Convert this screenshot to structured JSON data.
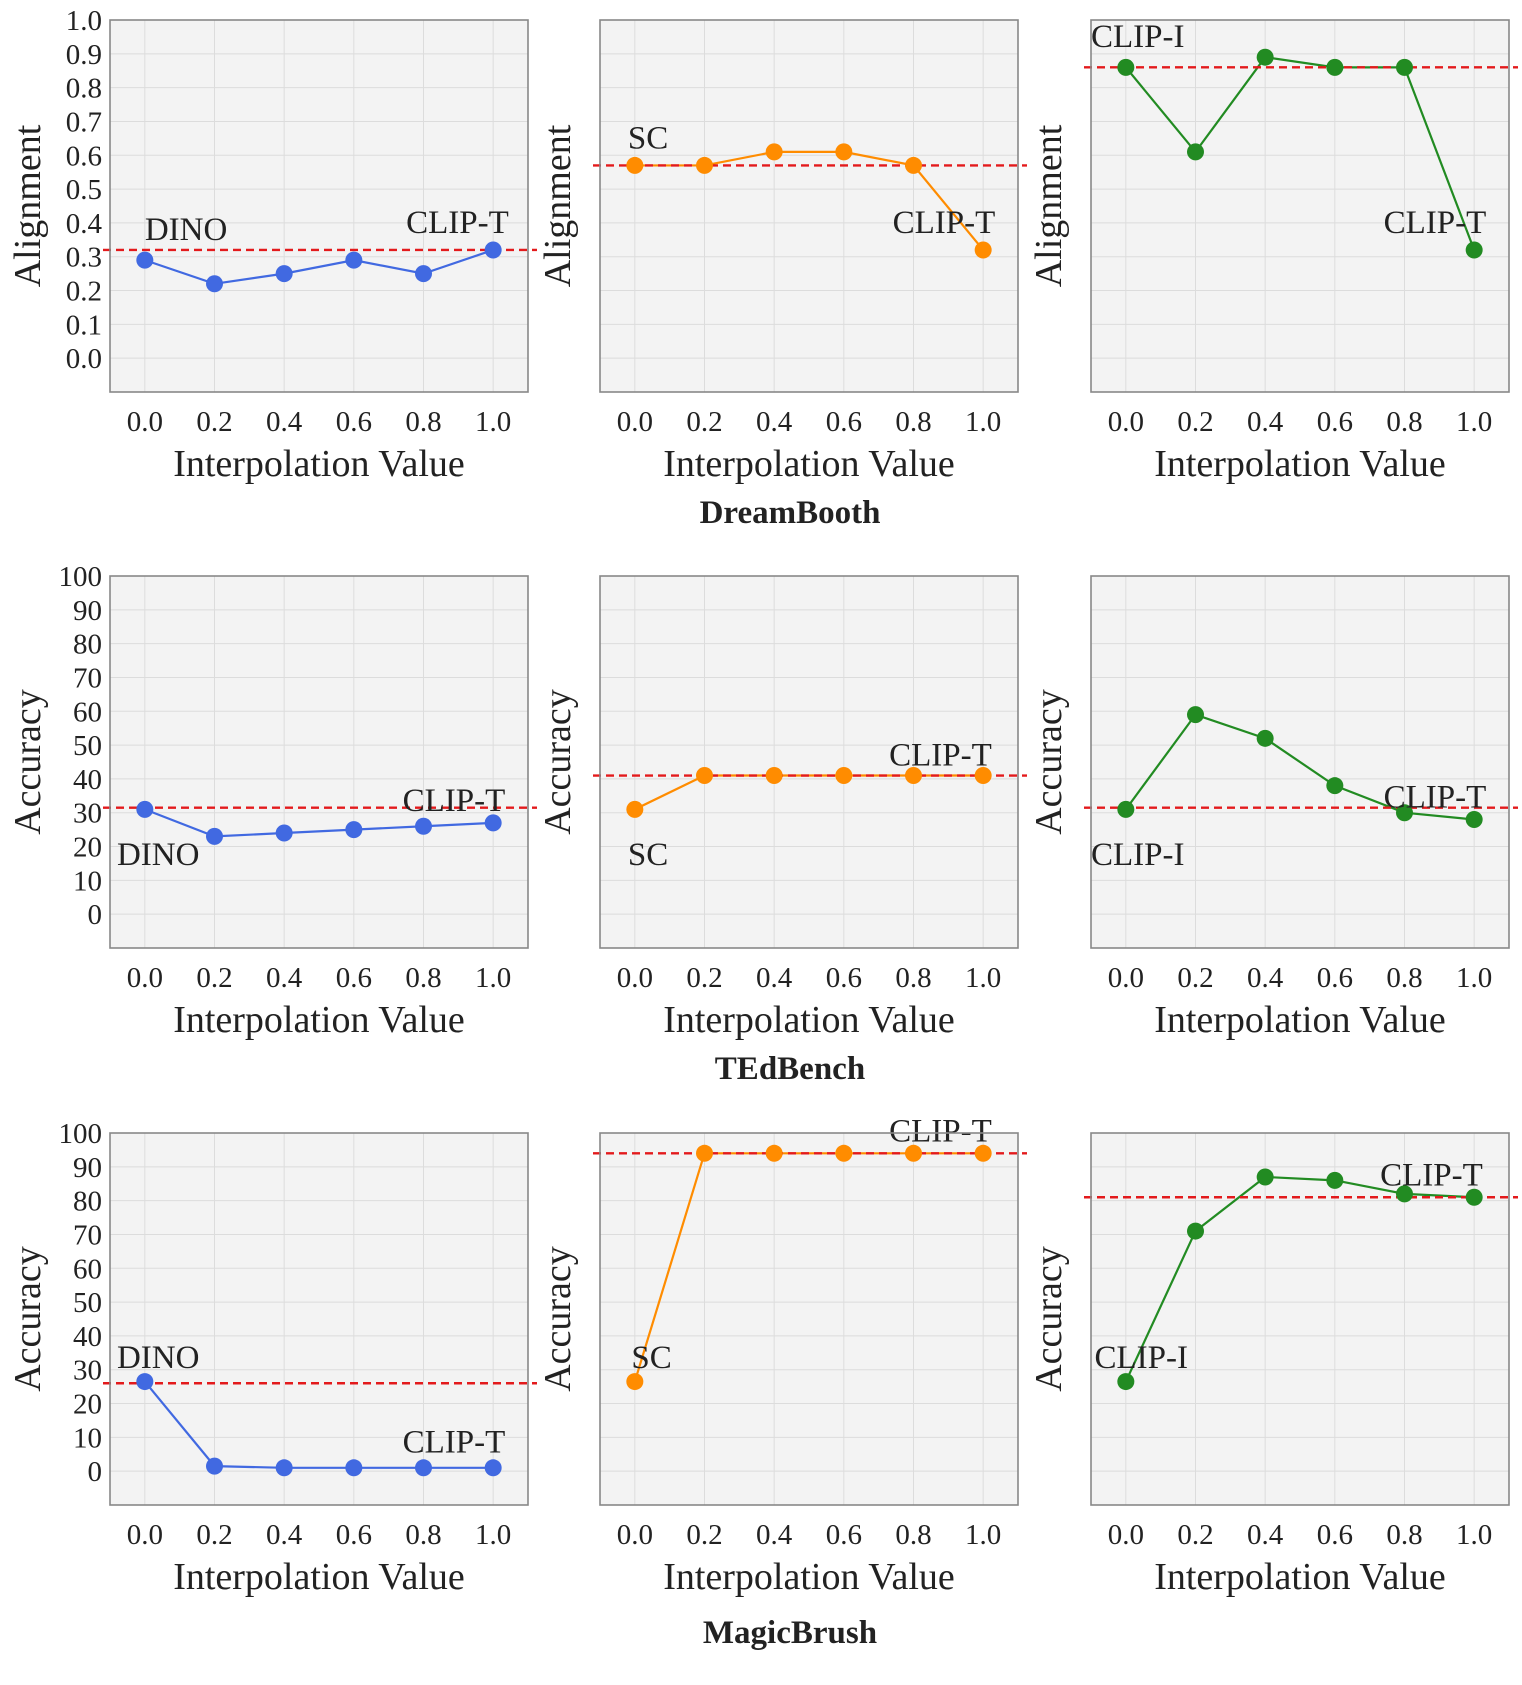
{
  "figure": {
    "group_titles": [
      "DreamBooth",
      "TEdBench",
      "MagicBrush"
    ]
  },
  "chart_data": [
    {
      "type": "line",
      "group": "DreamBooth",
      "panel": "DreamBooth-DINO",
      "x": [
        0.0,
        0.2,
        0.4,
        0.6,
        0.8,
        1.0
      ],
      "values": [
        0.29,
        0.22,
        0.25,
        0.29,
        0.25,
        0.32
      ],
      "xlabel": "Interpolation Value",
      "ylabel": "Alignment",
      "xticks": [
        "0.0",
        "0.2",
        "0.4",
        "0.6",
        "0.8",
        "1.0"
      ],
      "yticks": [
        "0.0",
        "0.1",
        "0.2",
        "0.3",
        "0.4",
        "0.5",
        "0.6",
        "0.7",
        "0.8",
        "0.9",
        "1.0"
      ],
      "show_yticks": true,
      "ylim": [
        -0.1,
        1.0
      ],
      "xlim": [
        -0.1,
        1.1
      ],
      "reference_line": 0.32,
      "annotations": [
        {
          "text": "DINO",
          "x": 0.0,
          "y": 0.35
        },
        {
          "text": "CLIP-T",
          "x": 0.75,
          "y": 0.37
        }
      ],
      "color": "#4169e1",
      "grid": true
    },
    {
      "type": "line",
      "group": "DreamBooth",
      "panel": "DreamBooth-SC",
      "x": [
        0.0,
        0.2,
        0.4,
        0.6,
        0.8,
        1.0
      ],
      "values": [
        0.57,
        0.57,
        0.61,
        0.61,
        0.57,
        0.32
      ],
      "xlabel": "Interpolation Value",
      "ylabel": "Alignment",
      "xticks": [
        "0.0",
        "0.2",
        "0.4",
        "0.6",
        "0.8",
        "1.0"
      ],
      "yticks": [],
      "show_yticks": false,
      "ylim": [
        -0.1,
        1.0
      ],
      "xlim": [
        -0.1,
        1.1
      ],
      "reference_line": 0.57,
      "annotations": [
        {
          "text": "SC",
          "x": -0.02,
          "y": 0.62
        },
        {
          "text": "CLIP-T",
          "x": 0.74,
          "y": 0.37
        }
      ],
      "color": "#ff8c00",
      "grid": true
    },
    {
      "type": "line",
      "group": "DreamBooth",
      "panel": "DreamBooth-CLIP-I",
      "x": [
        0.0,
        0.2,
        0.4,
        0.6,
        0.8,
        1.0
      ],
      "values": [
        0.86,
        0.61,
        0.89,
        0.86,
        0.86,
        0.32
      ],
      "xlabel": "Interpolation Value",
      "ylabel": "Alignment",
      "xticks": [
        "0.0",
        "0.2",
        "0.4",
        "0.6",
        "0.8",
        "1.0"
      ],
      "yticks": [],
      "show_yticks": false,
      "ylim": [
        -0.1,
        1.0
      ],
      "xlim": [
        -0.1,
        1.1
      ],
      "reference_line": 0.86,
      "annotations": [
        {
          "text": "CLIP-I",
          "x": -0.1,
          "y": 0.92
        },
        {
          "text": "CLIP-T",
          "x": 0.74,
          "y": 0.37
        }
      ],
      "color": "#228b22",
      "grid": true
    },
    {
      "type": "line",
      "group": "TEdBench",
      "panel": "TEdBench-DINO",
      "x": [
        0.0,
        0.2,
        0.4,
        0.6,
        0.8,
        1.0
      ],
      "values": [
        31,
        23,
        24,
        25,
        26,
        27
      ],
      "xlabel": "Interpolation Value",
      "ylabel": "Accuracy",
      "xticks": [
        "0.0",
        "0.2",
        "0.4",
        "0.6",
        "0.8",
        "1.0"
      ],
      "yticks": [
        "0",
        "10",
        "20",
        "30",
        "40",
        "50",
        "60",
        "70",
        "80",
        "90",
        "100"
      ],
      "show_yticks": true,
      "ylim": [
        -10,
        100
      ],
      "xlim": [
        -0.1,
        1.1
      ],
      "reference_line": 31.5,
      "annotations": [
        {
          "text": "DINO",
          "x": -0.08,
          "y": 14.5
        },
        {
          "text": "CLIP-T",
          "x": 0.74,
          "y": 30.5
        }
      ],
      "color": "#4169e1",
      "grid": true
    },
    {
      "type": "line",
      "group": "TEdBench",
      "panel": "TEdBench-SC",
      "x": [
        0.0,
        0.2,
        0.4,
        0.6,
        0.8,
        1.0
      ],
      "values": [
        31,
        41,
        41,
        41,
        41,
        41
      ],
      "xlabel": "Interpolation Value",
      "ylabel": "Accuracy",
      "xticks": [
        "0.0",
        "0.2",
        "0.4",
        "0.6",
        "0.8",
        "1.0"
      ],
      "yticks": [],
      "show_yticks": false,
      "ylim": [
        -10,
        100
      ],
      "xlim": [
        -0.1,
        1.1
      ],
      "reference_line": 41,
      "annotations": [
        {
          "text": "SC",
          "x": -0.02,
          "y": 14.5
        },
        {
          "text": "CLIP-T",
          "x": 0.73,
          "y": 44
        }
      ],
      "color": "#ff8c00",
      "grid": true
    },
    {
      "type": "line",
      "group": "TEdBench",
      "panel": "TEdBench-CLIP-I",
      "x": [
        0.0,
        0.2,
        0.4,
        0.6,
        0.8,
        1.0
      ],
      "values": [
        31,
        59,
        52,
        38,
        30,
        28
      ],
      "xlabel": "Interpolation Value",
      "ylabel": "Accuracy",
      "xticks": [
        "0.0",
        "0.2",
        "0.4",
        "0.6",
        "0.8",
        "1.0"
      ],
      "yticks": [],
      "show_yticks": false,
      "ylim": [
        -10,
        100
      ],
      "xlim": [
        -0.1,
        1.1
      ],
      "reference_line": 31.5,
      "annotations": [
        {
          "text": "CLIP-I",
          "x": -0.1,
          "y": 14.5
        },
        {
          "text": "CLIP-T",
          "x": 0.74,
          "y": 31.5
        }
      ],
      "color": "#228b22",
      "grid": true
    },
    {
      "type": "line",
      "group": "MagicBrush",
      "panel": "MagicBrush-DINO",
      "x": [
        0.0,
        0.2,
        0.4,
        0.6,
        0.8,
        1.0
      ],
      "values": [
        26.5,
        1.5,
        1,
        1,
        1,
        1
      ],
      "xlabel": "Interpolation Value",
      "ylabel": "Accuracy",
      "xticks": [
        "0.0",
        "0.2",
        "0.4",
        "0.6",
        "0.8",
        "1.0"
      ],
      "yticks": [
        "0",
        "10",
        "20",
        "30",
        "40",
        "50",
        "60",
        "70",
        "80",
        "90",
        "100"
      ],
      "show_yticks": true,
      "ylim": [
        -10,
        100
      ],
      "xlim": [
        -0.1,
        1.1
      ],
      "reference_line": 26,
      "annotations": [
        {
          "text": "DINO",
          "x": -0.08,
          "y": 30.5
        },
        {
          "text": "CLIP-T",
          "x": 0.74,
          "y": 5.5
        }
      ],
      "color": "#4169e1",
      "grid": true
    },
    {
      "type": "line",
      "group": "MagicBrush",
      "panel": "MagicBrush-SC",
      "x": [
        0.0,
        0.2,
        0.4,
        0.6,
        0.8,
        1.0
      ],
      "values": [
        26.5,
        94,
        94,
        94,
        94,
        94
      ],
      "xlabel": "Interpolation Value",
      "ylabel": "Accuracy",
      "xticks": [
        "0.0",
        "0.2",
        "0.4",
        "0.6",
        "0.8",
        "1.0"
      ],
      "yticks": [],
      "show_yticks": false,
      "ylim": [
        -10,
        100
      ],
      "xlim": [
        -0.1,
        1.1
      ],
      "reference_line": 94,
      "annotations": [
        {
          "text": "SC",
          "x": -0.01,
          "y": 30.5
        },
        {
          "text": "CLIP-T",
          "x": 0.73,
          "y": 97.5
        }
      ],
      "color": "#ff8c00",
      "grid": true
    },
    {
      "type": "line",
      "group": "MagicBrush",
      "panel": "MagicBrush-CLIP-I",
      "x": [
        0.0,
        0.2,
        0.4,
        0.6,
        0.8,
        1.0
      ],
      "values": [
        26.5,
        71,
        87,
        86,
        82,
        81
      ],
      "xlabel": "Interpolation Value",
      "ylabel": "Accuracy",
      "xticks": [
        "0.0",
        "0.2",
        "0.4",
        "0.6",
        "0.8",
        "1.0"
      ],
      "yticks": [],
      "show_yticks": false,
      "ylim": [
        -10,
        100
      ],
      "xlim": [
        -0.1,
        1.1
      ],
      "reference_line": 81,
      "annotations": [
        {
          "text": "CLIP-I",
          "x": -0.09,
          "y": 30.5
        },
        {
          "text": "CLIP-T",
          "x": 0.73,
          "y": 84.5
        }
      ],
      "color": "#228b22",
      "grid": true
    }
  ],
  "colors": {
    "plot_background": "#f3f3f3",
    "frame": "#888888",
    "grid": "#dcdcdc",
    "reference_line": "#e31a1c",
    "text": "#222222"
  }
}
